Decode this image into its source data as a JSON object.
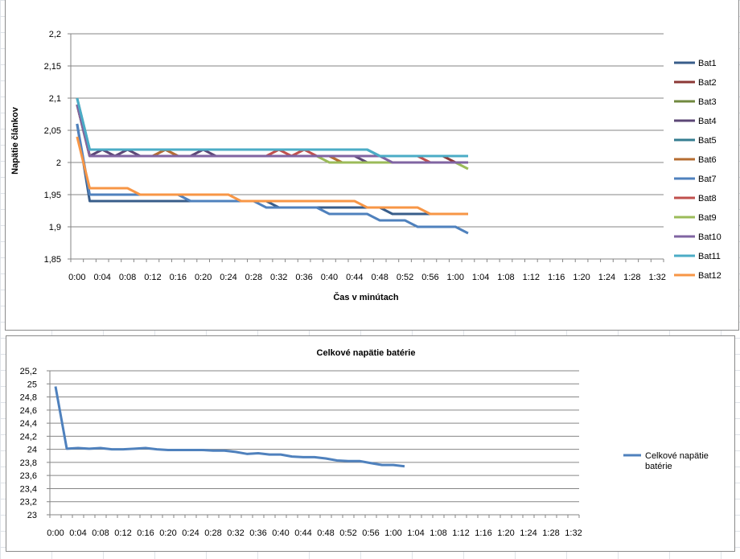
{
  "chart_data": [
    {
      "type": "line",
      "title": "",
      "xlabel": "Čas v minútach",
      "ylabel": "Napätie článkov",
      "ylim": [
        1.85,
        2.2
      ],
      "yticks": [
        "1,85",
        "1,9",
        "1,95",
        "2",
        "2,05",
        "2,1",
        "2,15",
        "2,2"
      ],
      "ytick_values": [
        1.85,
        1.9,
        1.95,
        2.0,
        2.05,
        2.1,
        2.15,
        2.2
      ],
      "xtick_labels": [
        "0:00",
        "0:04",
        "0:08",
        "0:12",
        "0:16",
        "0:20",
        "0:24",
        "0:28",
        "0:32",
        "0:36",
        "0:40",
        "0:44",
        "0:48",
        "0:52",
        "0:56",
        "1:00",
        "1:04",
        "1:08",
        "1:12",
        "1:16",
        "1:20",
        "1:24",
        "1:28",
        "1:32"
      ],
      "x_step_minutes": 2,
      "grid": true,
      "legend_position": "right",
      "series": [
        {
          "name": "Bat1",
          "color": "#385D8A",
          "values": [
            2.06,
            1.94,
            1.94,
            1.94,
            1.94,
            1.94,
            1.94,
            1.94,
            1.94,
            1.94,
            1.94,
            1.94,
            1.94,
            1.94,
            1.94,
            1.94,
            1.93,
            1.93,
            1.93,
            1.93,
            1.93,
            1.93,
            1.93,
            1.93,
            1.93,
            1.92,
            1.92,
            1.92,
            1.92,
            1.92,
            1.92,
            1.92
          ]
        },
        {
          "name": "Bat2",
          "color": "#8C3836",
          "values": [
            2.09,
            2.01,
            2.01,
            2.01,
            2.01,
            2.01,
            2.01,
            2.01,
            2.01,
            2.01,
            2.01,
            2.01,
            2.01,
            2.01,
            2.01,
            2.01,
            2.01,
            2.01,
            2.01,
            2.01,
            2.01,
            2.01,
            2.01,
            2.01,
            2.01,
            2.01,
            2.01,
            2.01,
            2.01,
            2.01,
            2.0,
            2.0
          ]
        },
        {
          "name": "Bat3",
          "color": "#71893F",
          "values": [
            2.09,
            2.01,
            2.01,
            2.01,
            2.01,
            2.01,
            2.01,
            2.01,
            2.01,
            2.01,
            2.01,
            2.01,
            2.01,
            2.01,
            2.01,
            2.01,
            2.01,
            2.01,
            2.01,
            2.01,
            2.01,
            2.0,
            2.0,
            2.0,
            2.0,
            2.0,
            2.0,
            2.0,
            2.0,
            2.0,
            2.0,
            2.0
          ]
        },
        {
          "name": "Bat4",
          "color": "#5C4776",
          "values": [
            2.09,
            2.01,
            2.02,
            2.01,
            2.02,
            2.01,
            2.01,
            2.02,
            2.01,
            2.01,
            2.02,
            2.01,
            2.01,
            2.01,
            2.01,
            2.01,
            2.01,
            2.01,
            2.01,
            2.01,
            2.01,
            2.01,
            2.01,
            2.0,
            2.0,
            2.0,
            2.0,
            2.0,
            2.0,
            2.0,
            2.0,
            2.0
          ]
        },
        {
          "name": "Bat5",
          "color": "#357D91",
          "values": [
            2.1,
            2.02,
            2.02,
            2.02,
            2.02,
            2.02,
            2.02,
            2.02,
            2.02,
            2.02,
            2.02,
            2.02,
            2.02,
            2.02,
            2.02,
            2.02,
            2.02,
            2.02,
            2.02,
            2.02,
            2.02,
            2.02,
            2.02,
            2.02,
            2.01,
            2.01,
            2.01,
            2.01,
            2.01,
            2.01,
            2.01,
            2.01
          ]
        },
        {
          "name": "Bat6",
          "color": "#B66D31",
          "values": [
            2.09,
            2.01,
            2.01,
            2.01,
            2.01,
            2.01,
            2.01,
            2.02,
            2.01,
            2.01,
            2.01,
            2.01,
            2.01,
            2.01,
            2.01,
            2.01,
            2.01,
            2.01,
            2.01,
            2.01,
            2.01,
            2.0,
            2.0,
            2.0,
            2.0,
            2.0,
            2.0,
            2.0,
            2.0,
            2.0,
            2.0,
            2.0
          ]
        },
        {
          "name": "Bat7",
          "color": "#4F81BD",
          "values": [
            2.06,
            1.95,
            1.95,
            1.95,
            1.95,
            1.95,
            1.95,
            1.95,
            1.95,
            1.94,
            1.94,
            1.94,
            1.94,
            1.94,
            1.94,
            1.93,
            1.93,
            1.93,
            1.93,
            1.93,
            1.92,
            1.92,
            1.92,
            1.92,
            1.91,
            1.91,
            1.91,
            1.9,
            1.9,
            1.9,
            1.9,
            1.89
          ]
        },
        {
          "name": "Bat8",
          "color": "#C0504D",
          "values": [
            2.09,
            2.01,
            2.01,
            2.01,
            2.01,
            2.01,
            2.01,
            2.01,
            2.01,
            2.01,
            2.01,
            2.01,
            2.01,
            2.01,
            2.01,
            2.01,
            2.02,
            2.01,
            2.02,
            2.01,
            2.01,
            2.01,
            2.01,
            2.01,
            2.01,
            2.01,
            2.01,
            2.01,
            2.0,
            2.0,
            2.0,
            2.0
          ]
        },
        {
          "name": "Bat9",
          "color": "#9BBB59",
          "values": [
            2.09,
            2.01,
            2.01,
            2.01,
            2.01,
            2.01,
            2.01,
            2.01,
            2.01,
            2.01,
            2.01,
            2.01,
            2.01,
            2.01,
            2.01,
            2.01,
            2.01,
            2.01,
            2.01,
            2.01,
            2.0,
            2.0,
            2.0,
            2.0,
            2.0,
            2.0,
            2.0,
            2.0,
            2.0,
            2.0,
            2.0,
            1.99
          ]
        },
        {
          "name": "Bat10",
          "color": "#8064A2",
          "values": [
            2.09,
            2.01,
            2.01,
            2.01,
            2.01,
            2.01,
            2.01,
            2.01,
            2.01,
            2.01,
            2.01,
            2.01,
            2.01,
            2.01,
            2.01,
            2.01,
            2.01,
            2.01,
            2.01,
            2.01,
            2.01,
            2.01,
            2.01,
            2.01,
            2.01,
            2.0,
            2.0,
            2.0,
            2.0,
            2.0,
            2.0,
            2.0
          ]
        },
        {
          "name": "Bat11",
          "color": "#4BACC6",
          "values": [
            2.1,
            2.02,
            2.02,
            2.02,
            2.02,
            2.02,
            2.02,
            2.02,
            2.02,
            2.02,
            2.02,
            2.02,
            2.02,
            2.02,
            2.02,
            2.02,
            2.02,
            2.02,
            2.02,
            2.02,
            2.02,
            2.02,
            2.02,
            2.02,
            2.01,
            2.01,
            2.01,
            2.01,
            2.01,
            2.01,
            2.01,
            2.01
          ]
        },
        {
          "name": "Bat12",
          "color": "#F79646",
          "values": [
            2.04,
            1.96,
            1.96,
            1.96,
            1.96,
            1.95,
            1.95,
            1.95,
            1.95,
            1.95,
            1.95,
            1.95,
            1.95,
            1.94,
            1.94,
            1.94,
            1.94,
            1.94,
            1.94,
            1.94,
            1.94,
            1.94,
            1.94,
            1.93,
            1.93,
            1.93,
            1.93,
            1.93,
            1.92,
            1.92,
            1.92,
            1.92
          ]
        }
      ]
    },
    {
      "type": "line",
      "title": "Celkové napätie batérie",
      "xlabel": "",
      "ylabel": "",
      "ylim": [
        23,
        25.2
      ],
      "yticks": [
        "23",
        "23,2",
        "23,4",
        "23,6",
        "23,8",
        "24",
        "24,2",
        "24,4",
        "24,6",
        "24,8",
        "25",
        "25,2"
      ],
      "ytick_values": [
        23,
        23.2,
        23.4,
        23.6,
        23.8,
        24,
        24.2,
        24.4,
        24.6,
        24.8,
        25,
        25.2
      ],
      "xtick_labels": [
        "0:00",
        "0:04",
        "0:08",
        "0:12",
        "0:16",
        "0:20",
        "0:24",
        "0:28",
        "0:32",
        "0:36",
        "0:40",
        "0:44",
        "0:48",
        "0:52",
        "0:56",
        "1:00",
        "1:04",
        "1:08",
        "1:12",
        "1:16",
        "1:20",
        "1:24",
        "1:28",
        "1:32"
      ],
      "x_step_minutes": 2,
      "grid": true,
      "legend_position": "right",
      "legend_lines": [
        "Celkové napätie",
        "batérie"
      ],
      "series": [
        {
          "name": "Celkové napätie batérie",
          "color": "#4F81BD",
          "values": [
            24.96,
            24.01,
            24.02,
            24.01,
            24.02,
            24.0,
            24.0,
            24.01,
            24.02,
            24.0,
            23.99,
            23.99,
            23.99,
            23.99,
            23.98,
            23.98,
            23.96,
            23.93,
            23.94,
            23.92,
            23.92,
            23.89,
            23.88,
            23.88,
            23.86,
            23.83,
            23.82,
            23.82,
            23.79,
            23.76,
            23.76,
            23.74
          ]
        }
      ]
    }
  ]
}
